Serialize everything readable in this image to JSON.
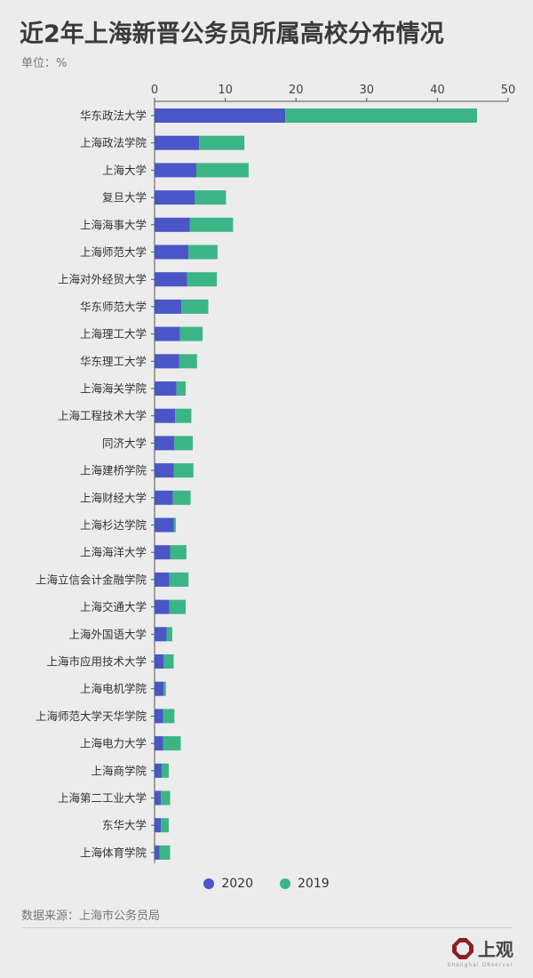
{
  "header": {
    "title": "近2年上海新晋公务员所属高校分布情况",
    "unit": "单位：%"
  },
  "footer": {
    "source": "数据来源：上海市公务员局",
    "logo_text": "上观",
    "logo_sub": "Shanghai Observer"
  },
  "colors": {
    "series_2020": "#4a56c8",
    "series_2019": "#3bb585"
  },
  "chart_data": {
    "type": "bar",
    "orientation": "horizontal",
    "stacked": true,
    "xlim": [
      0,
      50
    ],
    "xticks": [
      0,
      10,
      20,
      30,
      40,
      50
    ],
    "grid": false,
    "legend_position": "bottom",
    "categories": [
      "华东政法大学",
      "上海政法学院",
      "上海大学",
      "复旦大学",
      "上海海事大学",
      "上海师范大学",
      "上海对外经贸大学",
      "华东师范大学",
      "上海理工大学",
      "华东理工大学",
      "上海海关学院",
      "上海工程技术大学",
      "同济大学",
      "上海建桥学院",
      "上海财经大学",
      "上海杉达学院",
      "上海海洋大学",
      "上海立信会计金融学院",
      "上海交通大学",
      "上海外国语大学",
      "上海市应用技术大学",
      "上海电机学院",
      "上海师范大学天华学院",
      "上海电力大学",
      "上海商学院",
      "上海第二工业大学",
      "东华大学",
      "上海体育学院"
    ],
    "series": [
      {
        "name": "2020",
        "values": [
          18.5,
          6.3,
          5.9,
          5.7,
          5.0,
          4.8,
          4.6,
          3.8,
          3.6,
          3.5,
          3.1,
          2.9,
          2.8,
          2.7,
          2.6,
          2.7,
          2.2,
          2.1,
          2.1,
          1.7,
          1.3,
          1.3,
          1.2,
          1.2,
          1.0,
          0.9,
          0.9,
          0.7
        ]
      },
      {
        "name": "2019",
        "values": [
          27.1,
          6.4,
          7.4,
          4.4,
          6.1,
          4.1,
          4.2,
          3.8,
          3.2,
          2.5,
          1.3,
          2.3,
          2.6,
          2.8,
          2.5,
          0.3,
          2.3,
          2.7,
          2.3,
          0.8,
          1.4,
          0.3,
          1.6,
          2.5,
          1.0,
          1.3,
          1.1,
          1.5
        ]
      }
    ]
  }
}
